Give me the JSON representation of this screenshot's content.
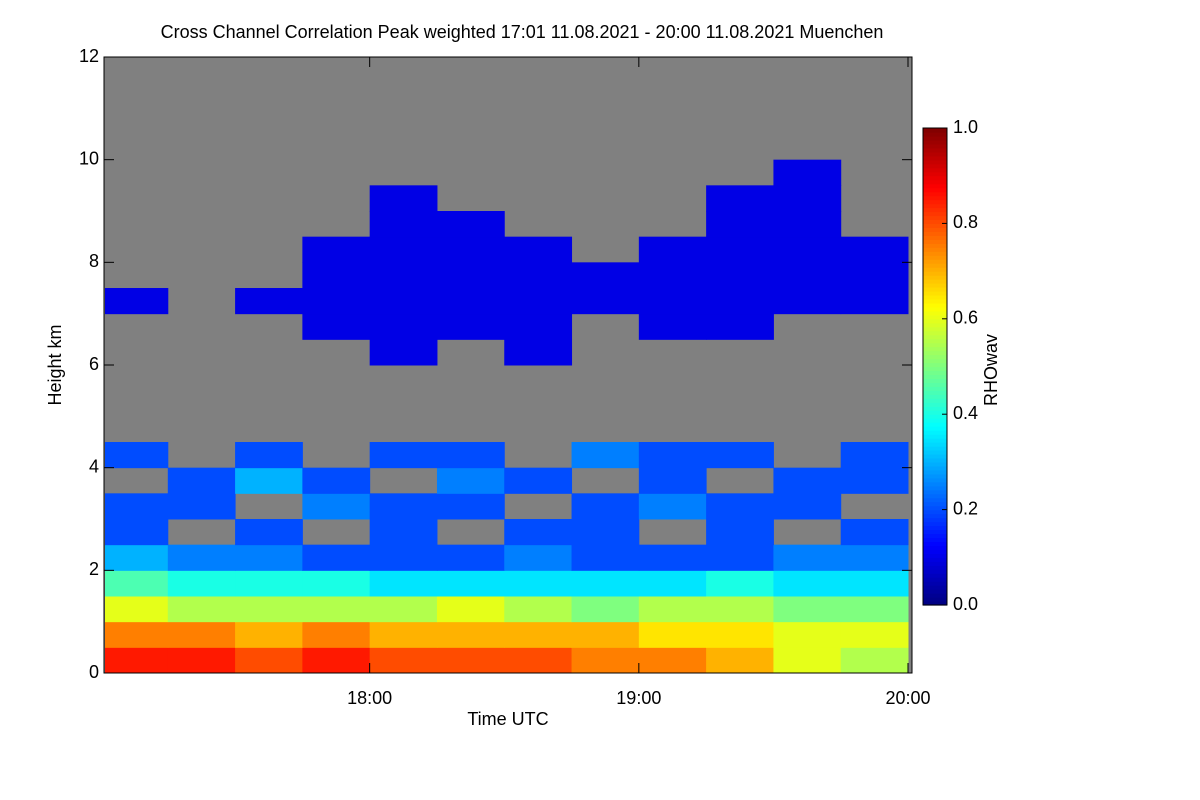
{
  "chart_data": {
    "type": "heatmap",
    "title": "Cross Channel Correlation Peak weighted   17:01 11.08.2021 - 20:00 11.08.2021 Muenchen",
    "x_label": "Time UTC",
    "y_label": "Height km",
    "colorbar_label": "RHOwav",
    "xbins": [
      17.0167,
      17.25,
      17.5,
      17.75,
      18.0,
      18.25,
      18.5,
      18.75,
      19.0,
      19.25,
      19.5,
      19.75,
      20.0
    ],
    "ybins": [
      0,
      0.5,
      1,
      1.5,
      2,
      2.5,
      3,
      3.5,
      4,
      4.5,
      5,
      5.5,
      6,
      6.5,
      7,
      7.5,
      8,
      8.5,
      9,
      9.5,
      10,
      10.5,
      11,
      11.5,
      12
    ],
    "z": [
      [
        0.85,
        0.85,
        0.8,
        0.85,
        0.8,
        0.8,
        0.8,
        0.75,
        0.75,
        0.7,
        0.6,
        0.55
      ],
      [
        0.75,
        0.75,
        0.7,
        0.75,
        0.7,
        0.7,
        0.7,
        0.7,
        0.65,
        0.65,
        0.6,
        0.6
      ],
      [
        0.6,
        0.55,
        0.55,
        0.55,
        0.55,
        0.6,
        0.55,
        0.5,
        0.55,
        0.55,
        0.5,
        0.5
      ],
      [
        0.45,
        0.4,
        0.4,
        0.4,
        0.35,
        0.35,
        0.35,
        0.35,
        0.35,
        0.4,
        0.35,
        0.35
      ],
      [
        0.3,
        0.25,
        0.25,
        0.2,
        0.2,
        0.2,
        0.25,
        0.2,
        0.2,
        0.2,
        0.25,
        0.25
      ],
      [
        0.2,
        null,
        0.2,
        null,
        0.2,
        null,
        0.2,
        0.2,
        null,
        0.2,
        null,
        0.2
      ],
      [
        0.2,
        0.2,
        null,
        0.25,
        0.2,
        0.2,
        null,
        0.2,
        0.25,
        0.2,
        0.2,
        null
      ],
      [
        null,
        0.2,
        0.3,
        0.2,
        null,
        0.25,
        0.2,
        null,
        0.2,
        null,
        0.2,
        0.2
      ],
      [
        0.2,
        null,
        0.2,
        null,
        0.2,
        0.2,
        null,
        0.25,
        0.2,
        0.2,
        null,
        0.2
      ],
      [
        null,
        null,
        null,
        null,
        null,
        null,
        null,
        null,
        null,
        null,
        null,
        null
      ],
      [
        null,
        null,
        null,
        null,
        null,
        null,
        null,
        null,
        null,
        null,
        null,
        null
      ],
      [
        null,
        null,
        null,
        null,
        null,
        null,
        null,
        null,
        null,
        null,
        null,
        null
      ],
      [
        null,
        null,
        null,
        null,
        0.1,
        null,
        0.1,
        null,
        null,
        null,
        null,
        null
      ],
      [
        null,
        null,
        null,
        0.1,
        0.1,
        0.1,
        0.1,
        null,
        0.1,
        0.1,
        null,
        null
      ],
      [
        0.1,
        null,
        0.1,
        0.1,
        0.1,
        0.1,
        0.1,
        0.1,
        0.1,
        0.1,
        0.1,
        0.1
      ],
      [
        null,
        null,
        null,
        0.1,
        0.1,
        0.1,
        0.1,
        0.1,
        0.1,
        0.1,
        0.1,
        0.1
      ],
      [
        null,
        null,
        null,
        0.1,
        0.1,
        0.1,
        0.1,
        null,
        0.1,
        0.1,
        0.1,
        0.1
      ],
      [
        null,
        null,
        null,
        null,
        0.1,
        0.1,
        null,
        null,
        null,
        0.1,
        0.1,
        null
      ],
      [
        null,
        null,
        null,
        null,
        0.1,
        null,
        null,
        null,
        null,
        0.1,
        0.1,
        null
      ],
      [
        null,
        null,
        null,
        null,
        null,
        null,
        null,
        null,
        null,
        null,
        0.1,
        null
      ],
      [
        null,
        null,
        null,
        null,
        null,
        null,
        null,
        null,
        null,
        null,
        null,
        null
      ],
      [
        null,
        null,
        null,
        null,
        null,
        null,
        null,
        null,
        null,
        null,
        null,
        null
      ],
      [
        null,
        null,
        null,
        null,
        null,
        null,
        null,
        null,
        null,
        null,
        null,
        null
      ],
      [
        null,
        null,
        null,
        null,
        null,
        null,
        null,
        null,
        null,
        null,
        null,
        null
      ]
    ],
    "xlim": [
      17.0167,
      20.0
    ],
    "xticks": [
      {
        "value": 18,
        "label": "18:00"
      },
      {
        "value": 19,
        "label": "19:00"
      },
      {
        "value": 20,
        "label": "20:00"
      }
    ],
    "ylim": [
      0,
      12
    ],
    "yticks": [
      0,
      2,
      4,
      6,
      8,
      10,
      12
    ],
    "zlim": [
      0,
      1
    ],
    "zticks": [
      {
        "value": 0,
        "label": "0.0"
      },
      {
        "value": 0.2,
        "label": "0.2"
      },
      {
        "value": 0.4,
        "label": "0.4"
      },
      {
        "value": 0.6,
        "label": "0.6"
      },
      {
        "value": 0.8,
        "label": "0.8"
      },
      {
        "value": 1,
        "label": "1.0"
      }
    ],
    "colormap": [
      "#00007f",
      "#0000ff",
      "#007fff",
      "#00ffff",
      "#7fff7f",
      "#ffff00",
      "#ff7f00",
      "#ff0000",
      "#7f0000"
    ],
    "missing_color": "#808080"
  }
}
